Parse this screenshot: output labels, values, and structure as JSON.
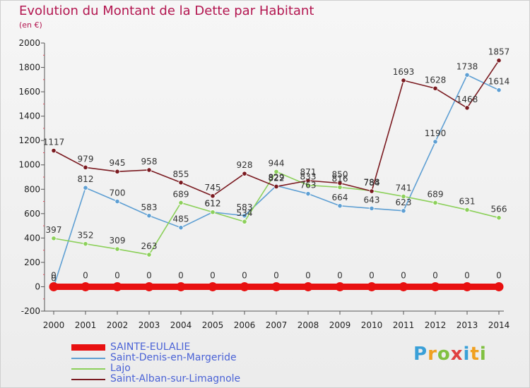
{
  "header": {
    "title": "Evolution du Montant de la Dette par Habitant",
    "subtitle": "(en €)"
  },
  "logo": {
    "text": "Proxiti"
  },
  "chart_data": {
    "type": "line",
    "title": "Evolution du Montant de la Dette par Habitant",
    "ylabel": "(en €)",
    "xlabel": "",
    "x": [
      "2000",
      "2001",
      "2002",
      "2003",
      "2004",
      "2005",
      "2006",
      "2007",
      "2008",
      "2009",
      "2010",
      "2011",
      "2012",
      "2013",
      "2014"
    ],
    "ylim": [
      -200,
      2000
    ],
    "yticks": [
      -200,
      0,
      200,
      400,
      600,
      800,
      1000,
      1200,
      1400,
      1600,
      1800,
      2000
    ],
    "grid": false,
    "legend_position": "bottom-left",
    "series": [
      {
        "name": "SAINTE-EULALIE",
        "color": "#e81010",
        "thick": true,
        "values": [
          0,
          0,
          0,
          0,
          0,
          0,
          0,
          0,
          0,
          0,
          0,
          0,
          0,
          0,
          0
        ]
      },
      {
        "name": "Saint-Denis-en-Margeride",
        "color": "#5e9fd3",
        "thick": false,
        "values": [
          0,
          812,
          700,
          583,
          485,
          612,
          583,
          829,
          763,
          664,
          643,
          623,
          1190,
          1738,
          1614
        ]
      },
      {
        "name": "Lajo",
        "color": "#8cd05a",
        "thick": false,
        "values": [
          397,
          352,
          309,
          263,
          689,
          612,
          534,
          944,
          833,
          816,
          788,
          741,
          689,
          631,
          566
        ]
      },
      {
        "name": "Saint-Alban-sur-Limagnole",
        "color": "#7a1a20",
        "thick": false,
        "values": [
          1117,
          979,
          945,
          958,
          855,
          745,
          928,
          822,
          871,
          850,
          784,
          1693,
          1628,
          1468,
          1857
        ]
      }
    ]
  }
}
